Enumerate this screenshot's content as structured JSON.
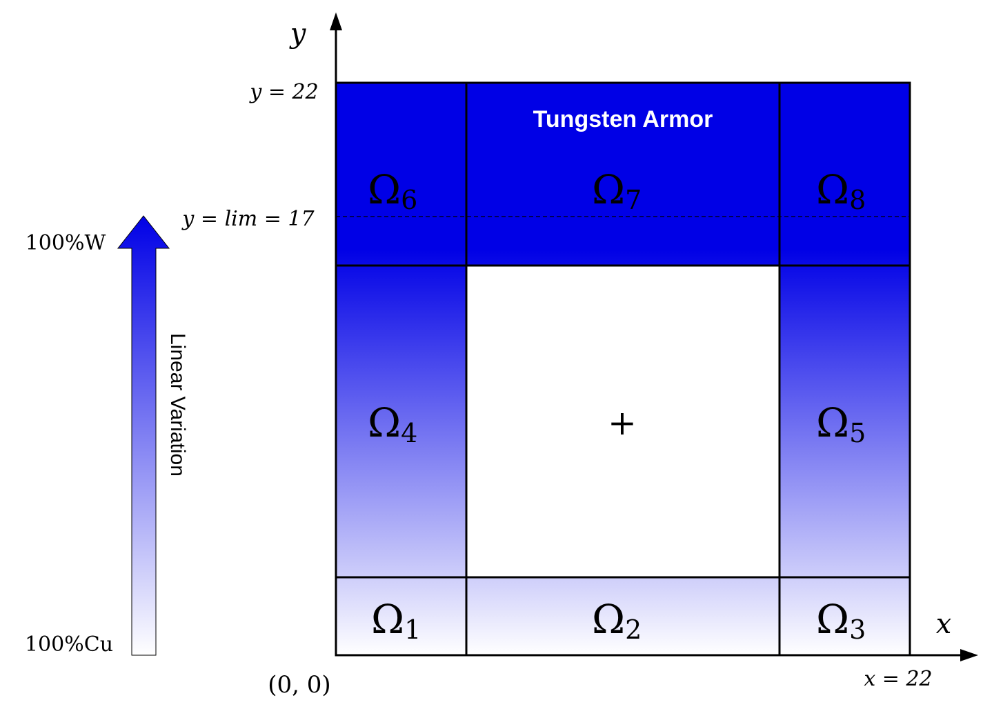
{
  "axes": {
    "x_label": "x",
    "y_label": "y",
    "origin_label": "(0, 0)",
    "x_max_label": "x = 22",
    "y_max_label": "y = 22",
    "y_lim_label": "y = lim = 17"
  },
  "scale": {
    "top_label": "100%W",
    "bottom_label": "100%Cu",
    "arrow_label": "Linear Variation",
    "top_color": "#0000e6",
    "bottom_color": "#ffffff"
  },
  "armor_label": "Tungsten Armor",
  "center_mark": "+",
  "regions": [
    {
      "id": "omega-1",
      "symbol": "Ω",
      "sub": "1"
    },
    {
      "id": "omega-2",
      "symbol": "Ω",
      "sub": "2"
    },
    {
      "id": "omega-3",
      "symbol": "Ω",
      "sub": "3"
    },
    {
      "id": "omega-4",
      "symbol": "Ω",
      "sub": "4"
    },
    {
      "id": "omega-5",
      "symbol": "Ω",
      "sub": "5"
    },
    {
      "id": "omega-6",
      "symbol": "Ω",
      "sub": "6"
    },
    {
      "id": "omega-7",
      "symbol": "Ω",
      "sub": "7"
    },
    {
      "id": "omega-8",
      "symbol": "Ω",
      "sub": "8"
    }
  ]
}
